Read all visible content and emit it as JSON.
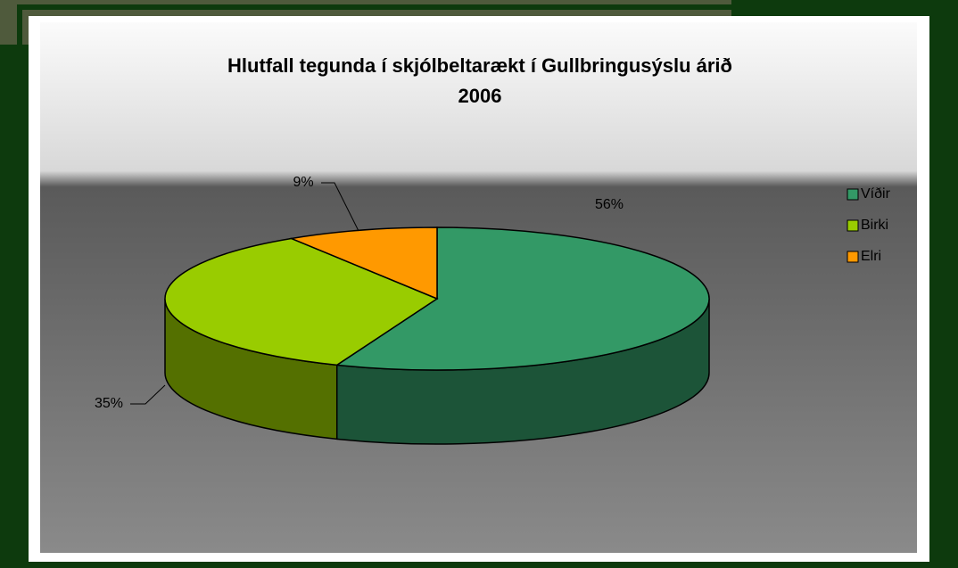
{
  "chart_data": {
    "type": "pie",
    "title": "Hlutfall tegunda í skjólbeltarækt í Gullbringusýslu árið 2006",
    "categories": [
      "Víðir",
      "Birki",
      "Elri"
    ],
    "values": [
      56,
      35,
      9
    ],
    "value_labels": [
      "56%",
      "35%",
      "9%"
    ],
    "colors": [
      "#339966",
      "#99cc00",
      "#ff9900"
    ],
    "legend": "right"
  }
}
